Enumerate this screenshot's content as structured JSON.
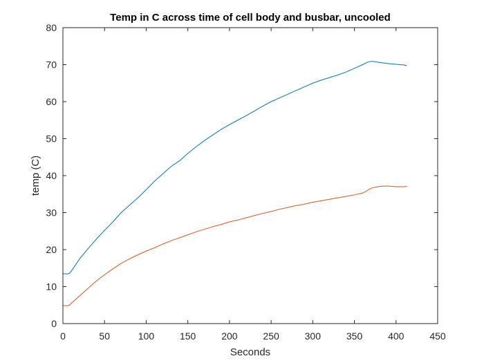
{
  "chart_data": {
    "type": "line",
    "title": "Temp in C across time of cell body and busbar, uncooled",
    "xlabel": "Seconds",
    "ylabel": "temp (C)",
    "xlim": [
      0,
      450
    ],
    "ylim": [
      0,
      80
    ],
    "xticks": [
      0,
      50,
      100,
      150,
      200,
      250,
      300,
      350,
      400,
      450
    ],
    "yticks": [
      0,
      10,
      20,
      30,
      40,
      50,
      60,
      70,
      80
    ],
    "grid": false,
    "legend": "none",
    "series": [
      {
        "color": "#0072BD",
        "x": [
          0,
          5,
          8,
          10,
          15,
          20,
          30,
          40,
          50,
          60,
          70,
          80,
          90,
          100,
          110,
          120,
          130,
          140,
          150,
          160,
          170,
          180,
          190,
          200,
          210,
          220,
          230,
          240,
          250,
          260,
          270,
          280,
          290,
          300,
          310,
          320,
          330,
          340,
          350,
          360,
          365,
          370,
          375,
          380,
          390,
          400,
          410,
          413
        ],
        "y": [
          13.5,
          13.4,
          13.6,
          14.2,
          15.8,
          17.5,
          20.2,
          22.8,
          25.2,
          27.5,
          30.0,
          32.0,
          34.0,
          36.2,
          38.5,
          40.5,
          42.5,
          44.0,
          46.0,
          47.8,
          49.5,
          51.0,
          52.5,
          53.8,
          55.0,
          56.2,
          57.5,
          58.8,
          60.0,
          61.0,
          62.0,
          63.0,
          64.0,
          65.0,
          65.8,
          66.5,
          67.2,
          68.0,
          69.0,
          70.0,
          70.6,
          70.9,
          70.8,
          70.6,
          70.3,
          70.1,
          69.9,
          69.7
        ]
      },
      {
        "color": "#D95319",
        "x": [
          0,
          5,
          8,
          10,
          15,
          20,
          30,
          40,
          50,
          60,
          70,
          80,
          90,
          100,
          110,
          120,
          130,
          140,
          150,
          160,
          170,
          180,
          190,
          200,
          210,
          220,
          230,
          240,
          250,
          260,
          270,
          280,
          290,
          300,
          310,
          320,
          330,
          340,
          350,
          360,
          365,
          370,
          380,
          390,
          400,
          410,
          413
        ],
        "y": [
          4.9,
          4.8,
          5.0,
          5.5,
          6.5,
          7.5,
          9.5,
          11.5,
          13.2,
          14.8,
          16.3,
          17.5,
          18.6,
          19.6,
          20.5,
          21.5,
          22.4,
          23.2,
          24.0,
          24.8,
          25.5,
          26.2,
          26.8,
          27.5,
          28.0,
          28.6,
          29.2,
          29.8,
          30.3,
          30.9,
          31.4,
          31.9,
          32.3,
          32.8,
          33.2,
          33.6,
          34.0,
          34.4,
          34.8,
          35.3,
          35.9,
          36.6,
          37.1,
          37.2,
          37.0,
          37.0,
          37.1
        ]
      }
    ]
  }
}
